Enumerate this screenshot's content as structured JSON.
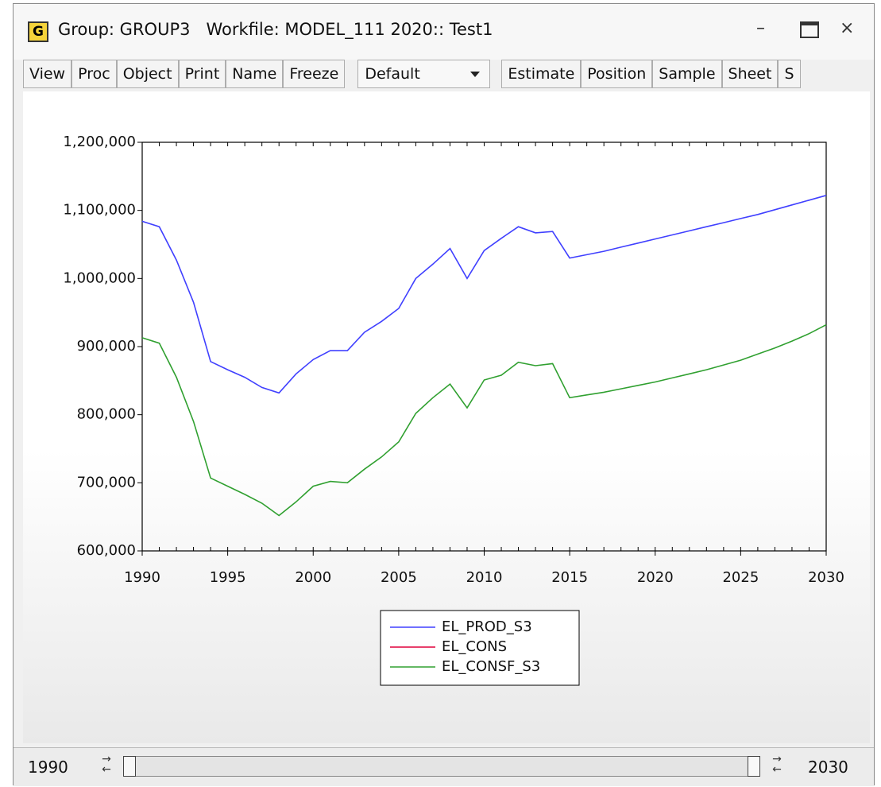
{
  "window": {
    "icon": "G",
    "title": "Group: GROUP3   Workfile: MODEL_111 2020:: Test1"
  },
  "toolbar": {
    "buttons_left": [
      "View",
      "Proc",
      "Object",
      "Print",
      "Name",
      "Freeze"
    ],
    "dropdown": "Default",
    "buttons_right": [
      "Estimate",
      "Position",
      "Sample",
      "Sheet",
      "S"
    ]
  },
  "chart_data": {
    "type": "line",
    "x": [
      1990,
      1991,
      1992,
      1993,
      1994,
      1995,
      1996,
      1997,
      1998,
      1999,
      2000,
      2001,
      2002,
      2003,
      2004,
      2005,
      2006,
      2007,
      2008,
      2009,
      2010,
      2011,
      2012,
      2013,
      2014,
      2015,
      2016,
      2017,
      2018,
      2019,
      2020,
      2021,
      2022,
      2023,
      2024,
      2025,
      2026,
      2027,
      2028,
      2029,
      2030
    ],
    "series": [
      {
        "name": "EL_PROD_S3",
        "color": "#4040ff",
        "values": [
          1084000,
          1076000,
          1027000,
          965000,
          878000,
          866000,
          855000,
          840000,
          832000,
          860000,
          881000,
          894000,
          894000,
          921000,
          937000,
          956000,
          1000000,
          1021000,
          1044000,
          1000000,
          1041000,
          1059000,
          1076000,
          1067000,
          1069000,
          1030000,
          1035000,
          1040000,
          1046000,
          1052000,
          1058000,
          1064000,
          1070000,
          1076000,
          1082000,
          1088000,
          1094000,
          1101000,
          1108000,
          1115000,
          1122000
        ]
      },
      {
        "name": "EL_CONS",
        "color": "#e0003c",
        "values": [
          null,
          null,
          null,
          null,
          null,
          null,
          null,
          null,
          null,
          null,
          null,
          null,
          null,
          null,
          null,
          null,
          null,
          null,
          null,
          null,
          null,
          null,
          null,
          null,
          null,
          null,
          null,
          null,
          null,
          null,
          null,
          null,
          null,
          null,
          null,
          null,
          null,
          null,
          null,
          null,
          null
        ]
      },
      {
        "name": "EL_CONSF_S3",
        "color": "#30a030",
        "values": [
          913000,
          905000,
          855000,
          790000,
          707000,
          695000,
          683000,
          670000,
          652000,
          672000,
          695000,
          702000,
          700000,
          720000,
          738000,
          760000,
          802000,
          825000,
          845000,
          810000,
          851000,
          858000,
          877000,
          872000,
          875000,
          825000,
          829000,
          833000,
          838000,
          843000,
          848000,
          854000,
          860000,
          866000,
          873000,
          880000,
          889000,
          898000,
          908000,
          919000,
          932000
        ]
      }
    ],
    "xlim": [
      1990,
      2030
    ],
    "xticks": [
      1990,
      1995,
      2000,
      2005,
      2010,
      2015,
      2020,
      2025,
      2030
    ],
    "ylim": [
      600000,
      1200000
    ],
    "yticks": [
      {
        "value": 600000,
        "label": "600,000"
      },
      {
        "value": 700000,
        "label": "700,000"
      },
      {
        "value": 800000,
        "label": "800,000"
      },
      {
        "value": 900000,
        "label": "900,000"
      },
      {
        "value": 1000000,
        "label": "1,000,000"
      },
      {
        "value": 1100000,
        "label": "1,100,000"
      },
      {
        "value": 1200000,
        "label": "1,200,000"
      }
    ],
    "grid": false
  },
  "sample_bar": {
    "start": "1990",
    "end": "2030"
  }
}
